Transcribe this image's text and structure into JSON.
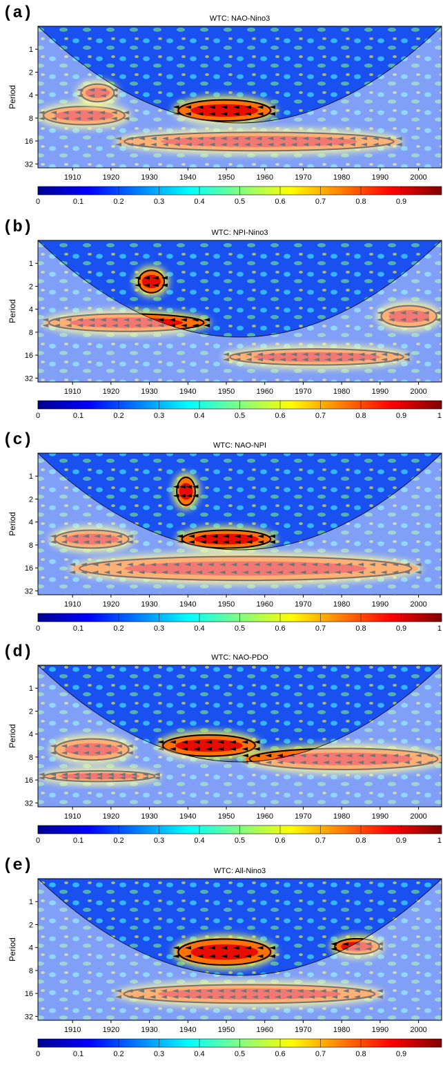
{
  "figure": {
    "colors": [
      "#00008f",
      "#0000ff",
      "#0080ff",
      "#00ffff",
      "#80ff80",
      "#ffff00",
      "#ff8000",
      "#ff0000",
      "#800000"
    ],
    "coi_color": "#ffffff"
  },
  "chart_data": [
    {
      "type": "heatmap",
      "letter": "(a)",
      "title": "WTC: NAO-Nino3",
      "ylabel": "Period",
      "xlim": [
        1901,
        2006
      ],
      "xticks": [
        1910,
        1920,
        1930,
        1940,
        1950,
        1960,
        1970,
        1980,
        1990,
        2000
      ],
      "yticks": [
        1,
        2,
        4,
        8,
        16,
        32
      ],
      "ylim": [
        0.5,
        36
      ],
      "y_scale": "log2",
      "colorbar": {
        "range": [
          0,
          1
        ],
        "ticks": [
          "0",
          "0.1",
          "0.2",
          "0.3",
          "0.4",
          "0.5",
          "0.6",
          "0.7",
          "0.8",
          "0.9"
        ]
      },
      "hot_regions": [
        {
          "x": [
            1902,
            1924
          ],
          "period": [
            5.5,
            10
          ]
        },
        {
          "x": [
            1937,
            1962
          ],
          "period": [
            4.5,
            9
          ]
        },
        {
          "x": [
            1922,
            1995
          ],
          "period": [
            12,
            22
          ]
        },
        {
          "x": [
            1912,
            1921
          ],
          "period": [
            2.8,
            5
          ]
        }
      ]
    },
    {
      "type": "heatmap",
      "letter": "(b)",
      "title": "WTC: NPI-Nino3",
      "ylabel": "Period",
      "xlim": [
        1901,
        2006
      ],
      "xticks": [
        1910,
        1920,
        1930,
        1940,
        1950,
        1960,
        1970,
        1980,
        1990,
        2000
      ],
      "yticks": [
        1,
        2,
        4,
        8,
        16,
        32
      ],
      "ylim": [
        0.5,
        36
      ],
      "y_scale": "log2",
      "colorbar": {
        "range": [
          0,
          1
        ],
        "ticks": [
          "0",
          "0.1",
          "0.2",
          "0.3",
          "0.4",
          "0.5",
          "0.6",
          "0.7",
          "0.8",
          "0.9",
          "1"
        ]
      },
      "hot_regions": [
        {
          "x": [
            1903,
            1945
          ],
          "period": [
            4.5,
            8
          ]
        },
        {
          "x": [
            1950,
            1997
          ],
          "period": [
            13,
            22
          ]
        },
        {
          "x": [
            1990,
            2005
          ],
          "period": [
            3.5,
            7
          ]
        },
        {
          "x": [
            1927,
            1934
          ],
          "period": [
            1.2,
            2.5
          ]
        }
      ]
    },
    {
      "type": "heatmap",
      "letter": "(c)",
      "title": "WTC: NAO-NPI",
      "ylabel": "Period",
      "xlim": [
        1901,
        2006
      ],
      "xticks": [
        1910,
        1920,
        1930,
        1940,
        1950,
        1960,
        1970,
        1980,
        1990,
        2000
      ],
      "yticks": [
        1,
        2,
        4,
        8,
        16,
        32
      ],
      "ylim": [
        0.5,
        36
      ],
      "y_scale": "log2",
      "colorbar": {
        "range": [
          0,
          1
        ],
        "ticks": [
          "0",
          "0.1",
          "0.2",
          "0.3",
          "0.4",
          "0.5",
          "0.6",
          "0.7",
          "0.8",
          "0.9",
          "1"
        ]
      },
      "hot_regions": [
        {
          "x": [
            1905,
            1925
          ],
          "period": [
            5,
            9
          ]
        },
        {
          "x": [
            1938,
            1962
          ],
          "period": [
            5,
            9
          ]
        },
        {
          "x": [
            1910,
            2000
          ],
          "period": [
            11,
            24
          ]
        },
        {
          "x": [
            1937,
            1942
          ],
          "period": [
            1,
            2.5
          ]
        }
      ]
    },
    {
      "type": "heatmap",
      "letter": "(d)",
      "title": "WTC: NAO-PDO",
      "ylabel": "Period",
      "xlim": [
        1901,
        2006
      ],
      "xticks": [
        1910,
        1920,
        1930,
        1940,
        1950,
        1960,
        1970,
        1980,
        1990,
        2000
      ],
      "yticks": [
        1,
        2,
        4,
        8,
        16,
        32
      ],
      "ylim": [
        0.5,
        36
      ],
      "y_scale": "log2",
      "colorbar": {
        "range": [
          0,
          1
        ],
        "ticks": [
          "0",
          "0.1",
          "0.2",
          "0.3",
          "0.4",
          "0.5",
          "0.6",
          "0.7",
          "0.8",
          "0.9",
          "1"
        ]
      },
      "hot_regions": [
        {
          "x": [
            1933,
            1958
          ],
          "period": [
            4,
            8
          ]
        },
        {
          "x": [
            1905,
            1925
          ],
          "period": [
            4.5,
            9
          ]
        },
        {
          "x": [
            1902,
            1932
          ],
          "period": [
            12,
            17
          ]
        },
        {
          "x": [
            1955,
            2006
          ],
          "period": [
            6,
            12
          ]
        }
      ]
    },
    {
      "type": "heatmap",
      "letter": "(e)",
      "title": "WTC: All-Nino3",
      "ylabel": "Period",
      "xlim": [
        1901,
        2006
      ],
      "xticks": [
        1910,
        1920,
        1930,
        1940,
        1950,
        1960,
        1970,
        1980,
        1990,
        2000
      ],
      "yticks": [
        1,
        2,
        4,
        8,
        16,
        32
      ],
      "ylim": [
        0.5,
        36
      ],
      "y_scale": "log2",
      "colorbar": {
        "range": [
          0,
          1
        ],
        "ticks": [
          "0",
          "0.1",
          "0.2",
          "0.3",
          "0.4",
          "0.5",
          "0.6",
          "0.7",
          "0.8",
          "0.9"
        ]
      },
      "hot_regions": [
        {
          "x": [
            1937,
            1962
          ],
          "period": [
            3,
            7
          ]
        },
        {
          "x": [
            1922,
            1990
          ],
          "period": [
            12,
            22
          ]
        },
        {
          "x": [
            1978,
            1990
          ],
          "period": [
            3,
            5
          ]
        }
      ]
    }
  ]
}
